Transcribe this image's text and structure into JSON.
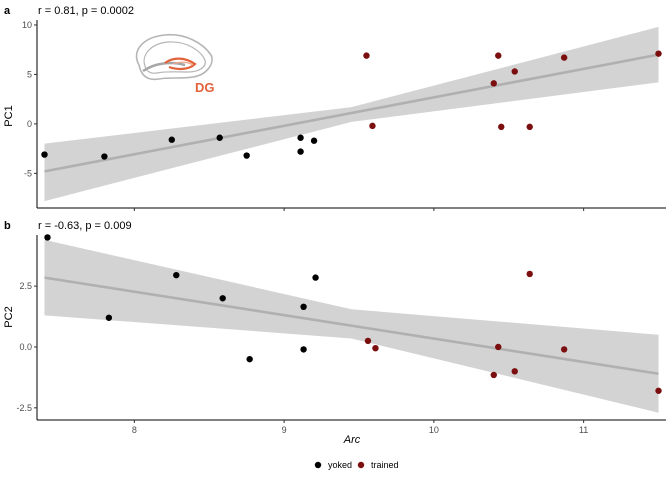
{
  "chart_data": [
    {
      "type": "scatter",
      "panel": "a",
      "annotation": "r = 0.81, p = 0.0002",
      "ylabel": "PC1",
      "xlabel": "",
      "xlim": [
        7.35,
        11.55
      ],
      "ylim": [
        -8.5,
        10.5
      ],
      "yticks": [
        -5,
        0,
        5,
        10
      ],
      "xticks": [
        8,
        9,
        10,
        11
      ],
      "fit_line": {
        "x": [
          7.4,
          11.5
        ],
        "y": [
          -4.8,
          7.0
        ]
      },
      "confidence_band": {
        "x": [
          7.4,
          9.45,
          11.5
        ],
        "lower": [
          -7.8,
          0.2,
          4.2
        ],
        "upper": [
          -2.0,
          1.7,
          9.8
        ]
      },
      "series": [
        {
          "name": "yoked",
          "color": "#000000",
          "x": [
            7.4,
            7.8,
            8.25,
            8.57,
            8.75,
            9.11,
            9.11,
            9.2
          ],
          "y": [
            -3.1,
            -3.3,
            -1.6,
            -1.4,
            -3.2,
            -1.4,
            -2.8,
            -1.7
          ]
        },
        {
          "name": "trained",
          "color": "#7b0f0f",
          "x": [
            9.55,
            9.59,
            10.4,
            10.43,
            10.45,
            10.54,
            10.64,
            10.87,
            11.5
          ],
          "y": [
            6.9,
            -0.2,
            4.1,
            6.9,
            -0.3,
            5.3,
            -0.3,
            6.7,
            7.1
          ]
        }
      ],
      "inset": {
        "label": "DG",
        "accent_color": "#e2623a"
      }
    },
    {
      "type": "scatter",
      "panel": "b",
      "annotation": "r = -0.63, p = 0.009",
      "ylabel": "PC2",
      "xlabel": "Arc",
      "xlim": [
        7.35,
        11.55
      ],
      "ylim": [
        -3.0,
        4.6
      ],
      "yticks": [
        -2.5,
        0.0,
        2.5
      ],
      "ytick_labels": [
        "-2.5",
        "0.0",
        "2.5"
      ],
      "xticks": [
        8,
        9,
        10,
        11
      ],
      "fit_line": {
        "x": [
          7.4,
          11.5
        ],
        "y": [
          2.85,
          -1.1
        ]
      },
      "confidence_band": {
        "x": [
          7.4,
          9.45,
          11.5
        ],
        "lower": [
          1.3,
          0.35,
          -2.7
        ],
        "upper": [
          4.4,
          1.55,
          0.5
        ]
      },
      "series": [
        {
          "name": "yoked",
          "color": "#000000",
          "x": [
            7.42,
            7.83,
            8.28,
            8.59,
            8.77,
            9.13,
            9.13,
            9.21
          ],
          "y": [
            4.5,
            1.2,
            2.95,
            2.0,
            -0.5,
            1.65,
            -0.1,
            2.85
          ]
        },
        {
          "name": "trained",
          "color": "#7b0f0f",
          "x": [
            9.56,
            9.61,
            10.4,
            10.43,
            10.54,
            10.64,
            10.87,
            11.5
          ],
          "y": [
            0.25,
            -0.05,
            -1.15,
            0.0,
            -1.0,
            3.0,
            -0.1,
            -1.8
          ]
        }
      ]
    }
  ],
  "legend": {
    "position": "bottom",
    "items": [
      {
        "label": "yoked",
        "color": "#000000"
      },
      {
        "label": "trained",
        "color": "#7b0f0f"
      }
    ]
  }
}
